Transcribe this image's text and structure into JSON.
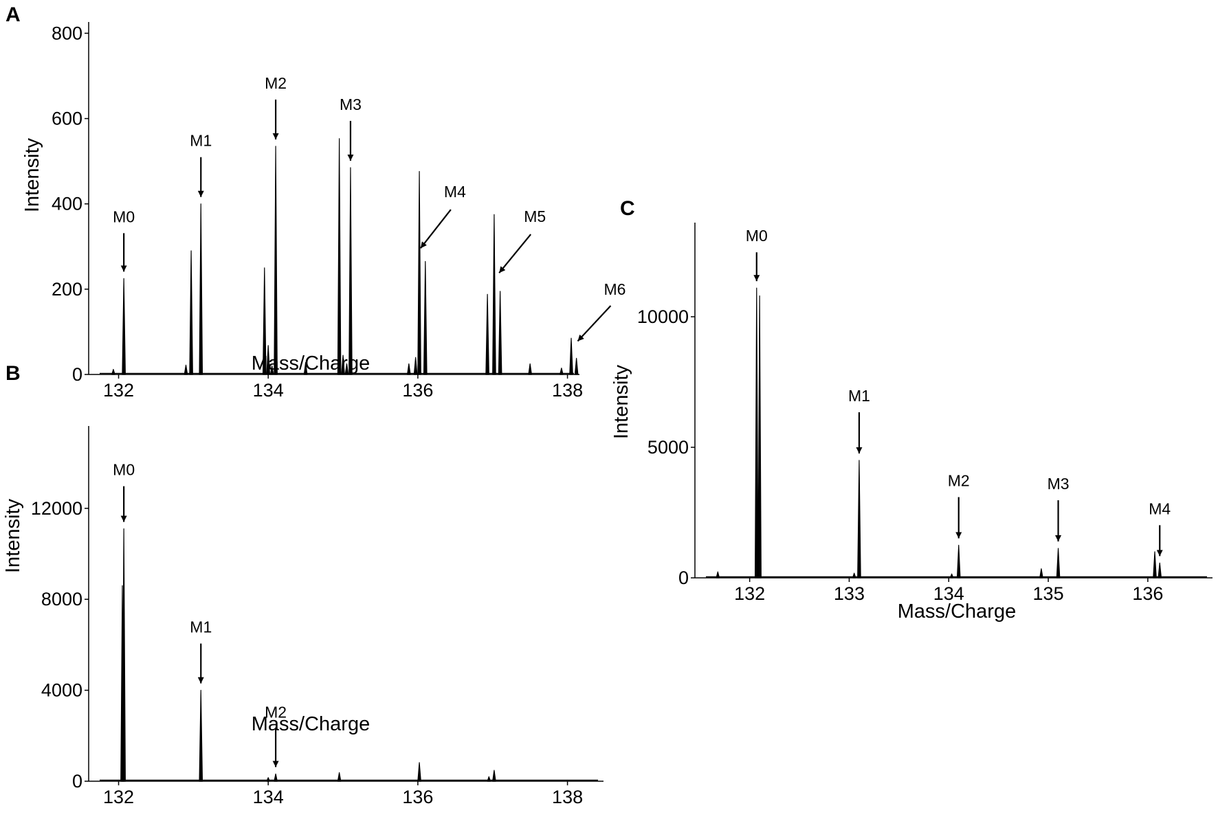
{
  "chart_data": [
    {
      "panel": "A",
      "type": "line",
      "xlabel": "Mass/Charge",
      "ylabel": "Intensity",
      "xlim": [
        131.6,
        138.5
      ],
      "ylim": [
        0,
        820
      ],
      "xticks": [
        132,
        134,
        136,
        138
      ],
      "yticks": [
        0,
        200,
        400,
        600,
        800
      ],
      "peaks": [
        {
          "x": 131.93,
          "y": 12
        },
        {
          "x": 132.07,
          "y": 225
        },
        {
          "x": 132.9,
          "y": 22
        },
        {
          "x": 132.97,
          "y": 290
        },
        {
          "x": 133.1,
          "y": 400
        },
        {
          "x": 133.95,
          "y": 250
        },
        {
          "x": 134.0,
          "y": 68
        },
        {
          "x": 134.05,
          "y": 20
        },
        {
          "x": 134.1,
          "y": 535
        },
        {
          "x": 134.5,
          "y": 28
        },
        {
          "x": 134.95,
          "y": 553
        },
        {
          "x": 135.0,
          "y": 45
        },
        {
          "x": 135.05,
          "y": 25
        },
        {
          "x": 135.1,
          "y": 485
        },
        {
          "x": 135.88,
          "y": 25
        },
        {
          "x": 135.97,
          "y": 40
        },
        {
          "x": 136.02,
          "y": 476
        },
        {
          "x": 136.1,
          "y": 265
        },
        {
          "x": 136.93,
          "y": 188
        },
        {
          "x": 137.02,
          "y": 375
        },
        {
          "x": 137.1,
          "y": 195
        },
        {
          "x": 137.5,
          "y": 25
        },
        {
          "x": 137.92,
          "y": 15
        },
        {
          "x": 138.05,
          "y": 85
        },
        {
          "x": 138.12,
          "y": 38
        }
      ],
      "annotations": [
        {
          "label": "M0",
          "x": 132.07,
          "y": 225
        },
        {
          "label": "M1",
          "x": 133.1,
          "y": 400
        },
        {
          "label": "M2",
          "x": 134.1,
          "y": 535
        },
        {
          "label": "M3",
          "x": 135.1,
          "y": 485
        },
        {
          "label": "M4",
          "x": 136.0,
          "y": 280
        },
        {
          "label": "M5",
          "x": 137.05,
          "y": 222
        },
        {
          "label": "M6",
          "x": 138.1,
          "y": 62
        }
      ]
    },
    {
      "panel": "B",
      "type": "line",
      "xlabel": "Mass/Charge",
      "ylabel": "Intensity",
      "xlim": [
        131.6,
        138.5
      ],
      "ylim": [
        0,
        15500
      ],
      "xticks": [
        132,
        134,
        136,
        138
      ],
      "yticks": [
        0,
        4000,
        8000,
        12000
      ],
      "peaks": [
        {
          "x": 132.05,
          "y": 8600
        },
        {
          "x": 132.07,
          "y": 11100
        },
        {
          "x": 133.1,
          "y": 4000
        },
        {
          "x": 134.0,
          "y": 160
        },
        {
          "x": 134.1,
          "y": 320
        },
        {
          "x": 134.95,
          "y": 380
        },
        {
          "x": 136.02,
          "y": 820
        },
        {
          "x": 136.95,
          "y": 200
        },
        {
          "x": 137.02,
          "y": 480
        }
      ],
      "annotations": [
        {
          "label": "M0",
          "x": 132.07,
          "y": 11100
        },
        {
          "label": "M1",
          "x": 133.1,
          "y": 4000
        },
        {
          "label": "M2",
          "x": 134.1,
          "y": 320
        }
      ]
    },
    {
      "panel": "C",
      "type": "line",
      "xlabel": "Mass/Charge",
      "ylabel": "Intensity",
      "xlim": [
        131.45,
        136.65
      ],
      "ylim": [
        0,
        13500
      ],
      "xticks": [
        132,
        133,
        134,
        135,
        136
      ],
      "yticks": [
        0,
        5000,
        10000
      ],
      "peaks": [
        {
          "x": 131.68,
          "y": 230
        },
        {
          "x": 132.07,
          "y": 11100
        },
        {
          "x": 132.1,
          "y": 10800
        },
        {
          "x": 133.05,
          "y": 180
        },
        {
          "x": 133.1,
          "y": 4500
        },
        {
          "x": 134.03,
          "y": 150
        },
        {
          "x": 134.1,
          "y": 1250
        },
        {
          "x": 134.93,
          "y": 350
        },
        {
          "x": 135.1,
          "y": 1130
        },
        {
          "x": 136.07,
          "y": 1000
        },
        {
          "x": 136.12,
          "y": 570
        }
      ],
      "annotations": [
        {
          "label": "M0",
          "x": 132.07,
          "y": 11100
        },
        {
          "label": "M1",
          "x": 133.1,
          "y": 4500
        },
        {
          "label": "M2",
          "x": 134.1,
          "y": 1250
        },
        {
          "label": "M3",
          "x": 135.1,
          "y": 1130
        },
        {
          "label": "M4",
          "x": 136.12,
          "y": 570
        }
      ]
    }
  ]
}
